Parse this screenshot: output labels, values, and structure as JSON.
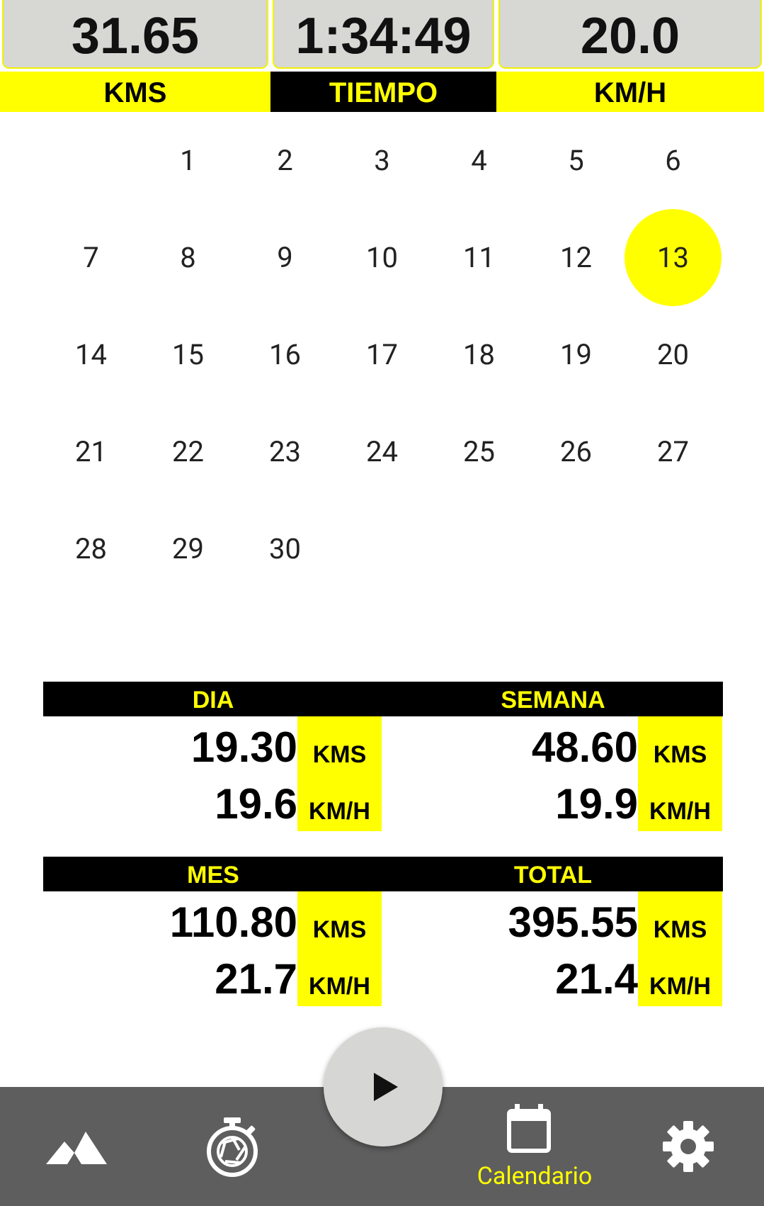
{
  "metrics": {
    "distance": {
      "value": "31.65",
      "label": "KMS"
    },
    "time": {
      "value": "1:34:49",
      "label": "TIEMPO"
    },
    "speed": {
      "value": "20.0",
      "label": "KM/H"
    }
  },
  "calendar": {
    "selected_day": "13",
    "weeks": [
      [
        "",
        "1",
        "2",
        "3",
        "4",
        "5",
        "6"
      ],
      [
        "7",
        "8",
        "9",
        "10",
        "11",
        "12",
        "13"
      ],
      [
        "14",
        "15",
        "16",
        "17",
        "18",
        "19",
        "20"
      ],
      [
        "21",
        "22",
        "23",
        "24",
        "25",
        "26",
        "27"
      ],
      [
        "28",
        "29",
        "30",
        "",
        "",
        "",
        ""
      ]
    ]
  },
  "stats": {
    "dia": {
      "title": "DIA",
      "kms": "19.30",
      "speed": "19.6"
    },
    "semana": {
      "title": "SEMANA",
      "kms": "48.60",
      "speed": "19.9"
    },
    "mes": {
      "title": "MES",
      "kms": "110.80",
      "speed": "21.7"
    },
    "total": {
      "title": "TOTAL",
      "kms": "395.55",
      "speed": "21.4"
    },
    "unit_kms": "KMS",
    "unit_speed": "KM/H"
  },
  "nav": {
    "items": [
      {
        "icon": "mountain-icon"
      },
      {
        "icon": "stopwatch-icon"
      },
      {
        "icon": "calendar-icon",
        "label": "Calendario",
        "active": true
      },
      {
        "icon": "gear-icon"
      }
    ],
    "fab_icon": "play-icon",
    "accent": "#ffff00",
    "bar_color": "#5e5e5e"
  }
}
